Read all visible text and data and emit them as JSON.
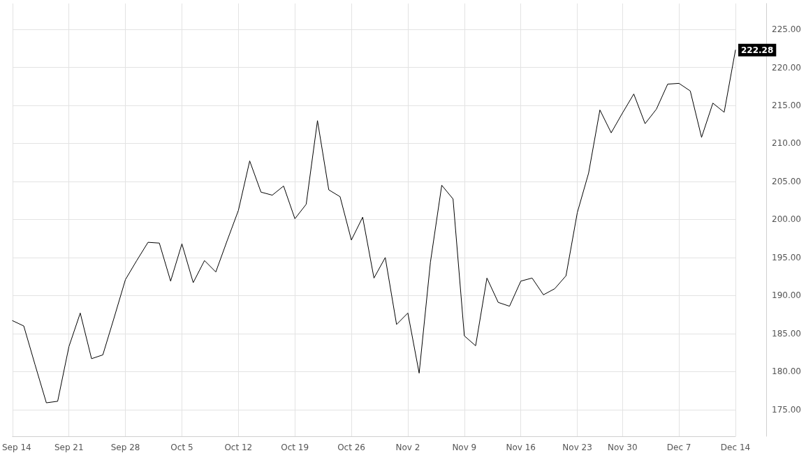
{
  "chart_data": {
    "type": "line",
    "categories": [
      "Sep 14",
      null,
      null,
      null,
      null,
      "Sep 21",
      null,
      null,
      null,
      null,
      "Sep 28",
      null,
      null,
      null,
      null,
      "Oct 5",
      null,
      null,
      null,
      null,
      "Oct 12",
      null,
      null,
      null,
      null,
      "Oct 19",
      null,
      null,
      null,
      null,
      "Oct 26",
      null,
      null,
      null,
      null,
      "Nov 2",
      null,
      null,
      null,
      null,
      "Nov 9",
      null,
      null,
      null,
      null,
      "Nov 16",
      null,
      null,
      null,
      null,
      "Nov 23",
      null,
      null,
      null,
      "Nov 30",
      null,
      null,
      null,
      null,
      "Dec 7",
      null,
      null,
      null,
      null,
      "Dec 14"
    ],
    "series": [
      {
        "color": "#000000",
        "values": [
          186.7,
          186.0,
          180.9,
          175.9,
          176.1,
          183.3,
          187.7,
          181.7,
          182.2,
          187.1,
          192.1,
          194.6,
          197.0,
          196.9,
          191.9,
          196.8,
          191.7,
          194.6,
          193.1,
          197.2,
          201.2,
          207.7,
          203.6,
          203.2,
          204.4,
          200.1,
          202.0,
          213.0,
          203.9,
          203.0,
          197.3,
          200.3,
          192.3,
          195.0,
          186.2,
          187.7,
          179.8,
          194.4,
          204.5,
          202.7,
          184.7,
          183.4,
          192.3,
          189.1,
          188.6,
          191.9,
          192.3,
          190.1,
          190.9,
          192.6,
          200.9,
          206.1,
          214.4,
          211.4,
          214.0,
          216.5,
          212.6,
          214.5,
          217.8,
          217.9,
          216.9,
          210.8,
          215.3,
          214.1,
          222.28
        ],
        "value_labels": [
          null,
          null,
          null,
          null,
          null,
          null,
          null,
          null,
          null,
          null,
          null,
          null,
          null,
          null,
          null,
          null,
          null,
          null,
          null,
          null,
          null,
          null,
          null,
          null,
          null,
          null,
          null,
          null,
          null,
          null,
          null,
          null,
          null,
          null,
          null,
          null,
          null,
          null,
          null,
          null,
          null,
          null,
          null,
          null,
          null,
          null,
          null,
          null,
          null,
          null,
          null,
          null,
          null,
          null,
          null,
          null,
          null,
          null,
          null,
          null,
          null,
          null,
          null,
          null,
          "222.28"
        ]
      }
    ],
    "ylim": [
      171.5,
      228.4
    ],
    "yticks": [
      {
        "value": 175,
        "label": "175.00"
      },
      {
        "value": 180,
        "label": "180.00"
      },
      {
        "value": 185,
        "label": "185.00"
      },
      {
        "value": 190,
        "label": "190.00"
      },
      {
        "value": 195,
        "label": "195.00"
      },
      {
        "value": 200,
        "label": "200.00"
      },
      {
        "value": 205,
        "label": "205.00"
      },
      {
        "value": 210,
        "label": "210.00"
      },
      {
        "value": 215,
        "label": "215.00"
      },
      {
        "value": 220,
        "label": "220.00"
      },
      {
        "value": 225,
        "label": "225.00"
      }
    ],
    "grid": true,
    "marker": "none",
    "line_style": "solid"
  }
}
